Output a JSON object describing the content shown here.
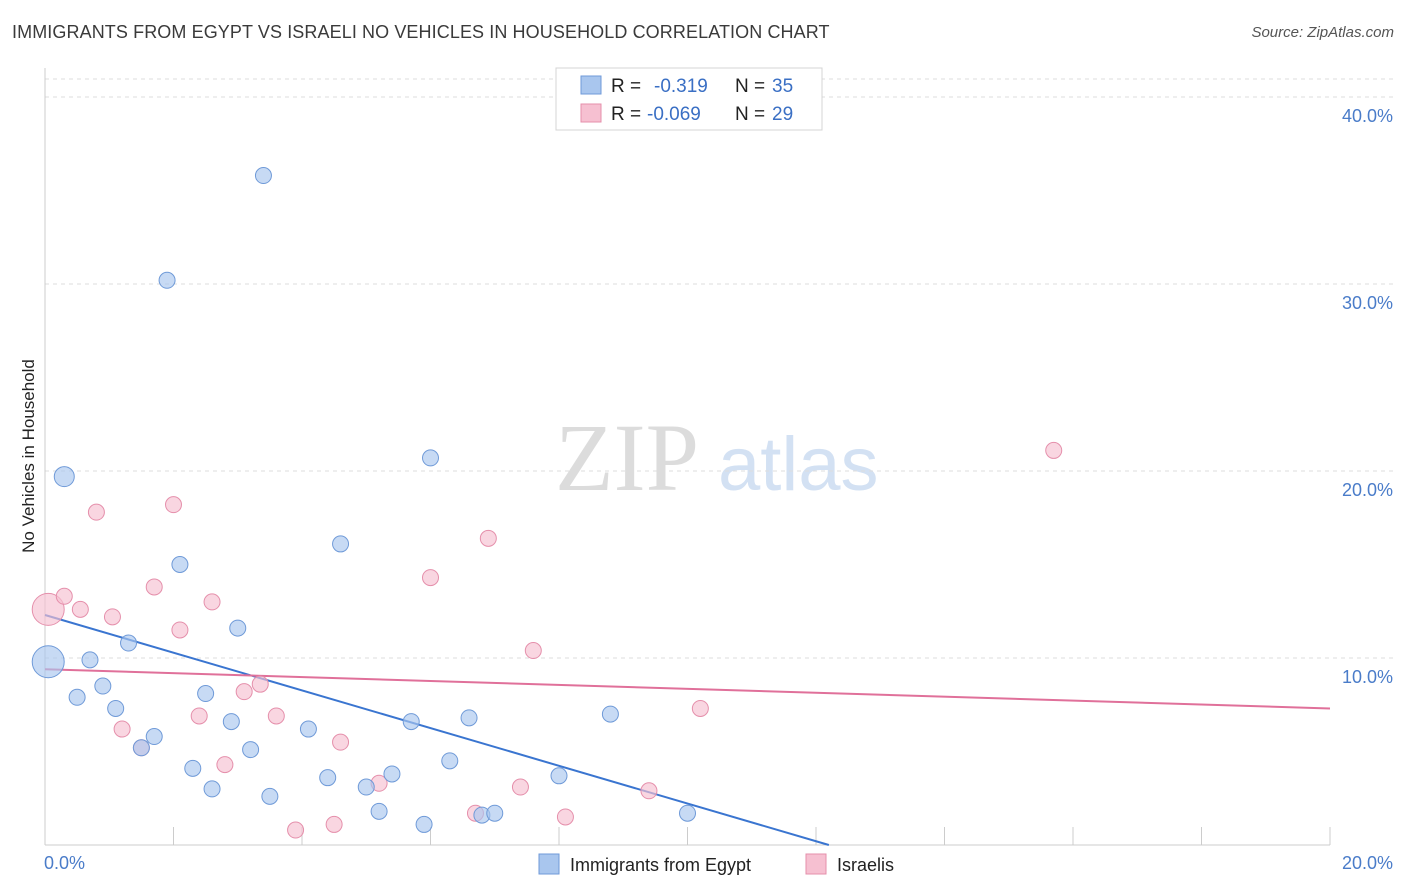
{
  "header": {
    "title": "IMMIGRANTS FROM EGYPT VS ISRAELI NO VEHICLES IN HOUSEHOLD CORRELATION CHART",
    "source": "Source: ZipAtlas.com"
  },
  "watermark": {
    "zip": "ZIP",
    "atlas": "atlas"
  },
  "chart_data": {
    "type": "scatter",
    "title": "IMMIGRANTS FROM EGYPT VS ISRAELI NO VEHICLES IN HOUSEHOLD CORRELATION CHART",
    "xlabel": "",
    "ylabel": "No Vehicles in Household",
    "xlim": [
      0,
      20
    ],
    "ylim": [
      0,
      40
    ],
    "x_tick_labels": [
      "0.0%",
      "20.0%"
    ],
    "y_ticks": [
      10,
      20,
      30,
      40
    ],
    "y_tick_labels": [
      "10.0%",
      "20.0%",
      "30.0%",
      "40.0%"
    ],
    "grid": true,
    "legend_position": "top-center",
    "series": [
      {
        "name": "Immigrants from Egypt",
        "color": "#a9c6ee",
        "stroke": "#6f9ad8",
        "line_color": "#3a75d0",
        "r_label": "R =",
        "r_value": "-0.319",
        "n_label": "N =",
        "n_value": "35",
        "trend": {
          "x": [
            0.0,
            12.2
          ],
          "y": [
            12.3,
            0.0
          ]
        },
        "points": [
          {
            "x": 0.05,
            "y": 9.8,
            "size": 16
          },
          {
            "x": 0.3,
            "y": 19.7,
            "size": 10
          },
          {
            "x": 0.5,
            "y": 7.9,
            "size": 8
          },
          {
            "x": 0.7,
            "y": 9.9,
            "size": 8
          },
          {
            "x": 0.9,
            "y": 8.5,
            "size": 8
          },
          {
            "x": 1.1,
            "y": 7.3,
            "size": 8
          },
          {
            "x": 1.3,
            "y": 10.8,
            "size": 8
          },
          {
            "x": 1.5,
            "y": 5.2,
            "size": 8
          },
          {
            "x": 1.7,
            "y": 5.8,
            "size": 8
          },
          {
            "x": 1.9,
            "y": 30.2,
            "size": 8
          },
          {
            "x": 2.1,
            "y": 15.0,
            "size": 8
          },
          {
            "x": 2.3,
            "y": 4.1,
            "size": 8
          },
          {
            "x": 2.5,
            "y": 8.1,
            "size": 8
          },
          {
            "x": 2.6,
            "y": 3.0,
            "size": 8
          },
          {
            "x": 2.9,
            "y": 6.6,
            "size": 8
          },
          {
            "x": 3.2,
            "y": 5.1,
            "size": 8
          },
          {
            "x": 3.0,
            "y": 11.6,
            "size": 8
          },
          {
            "x": 3.4,
            "y": 35.8,
            "size": 8
          },
          {
            "x": 3.5,
            "y": 2.6,
            "size": 8
          },
          {
            "x": 4.1,
            "y": 6.2,
            "size": 8
          },
          {
            "x": 4.4,
            "y": 3.6,
            "size": 8
          },
          {
            "x": 4.6,
            "y": 16.1,
            "size": 8
          },
          {
            "x": 5.0,
            "y": 3.1,
            "size": 8
          },
          {
            "x": 5.2,
            "y": 1.8,
            "size": 8
          },
          {
            "x": 5.4,
            "y": 3.8,
            "size": 8
          },
          {
            "x": 5.7,
            "y": 6.6,
            "size": 8
          },
          {
            "x": 5.9,
            "y": 1.1,
            "size": 8
          },
          {
            "x": 6.0,
            "y": 20.7,
            "size": 8
          },
          {
            "x": 6.3,
            "y": 4.5,
            "size": 8
          },
          {
            "x": 6.6,
            "y": 6.8,
            "size": 8
          },
          {
            "x": 6.8,
            "y": 1.6,
            "size": 8
          },
          {
            "x": 7.0,
            "y": 1.7,
            "size": 8
          },
          {
            "x": 8.0,
            "y": 3.7,
            "size": 8
          },
          {
            "x": 8.8,
            "y": 7.0,
            "size": 8
          },
          {
            "x": 10.0,
            "y": 1.7,
            "size": 8
          }
        ]
      },
      {
        "name": "Israelis",
        "color": "#f6c0d1",
        "stroke": "#e58fab",
        "line_color": "#e0709a",
        "r_label": "R =",
        "r_value": "-0.069",
        "n_label": "N =",
        "n_value": "29",
        "trend": {
          "x": [
            0.0,
            20.0
          ],
          "y": [
            9.4,
            7.3
          ]
        },
        "points": [
          {
            "x": 0.05,
            "y": 12.6,
            "size": 16
          },
          {
            "x": 0.3,
            "y": 13.3,
            "size": 8
          },
          {
            "x": 0.55,
            "y": 12.6,
            "size": 8
          },
          {
            "x": 0.8,
            "y": 17.8,
            "size": 8
          },
          {
            "x": 1.05,
            "y": 12.2,
            "size": 8
          },
          {
            "x": 1.2,
            "y": 6.2,
            "size": 8
          },
          {
            "x": 1.5,
            "y": 5.2,
            "size": 8
          },
          {
            "x": 1.7,
            "y": 13.8,
            "size": 8
          },
          {
            "x": 2.0,
            "y": 18.2,
            "size": 8
          },
          {
            "x": 2.1,
            "y": 11.5,
            "size": 8
          },
          {
            "x": 2.4,
            "y": 6.9,
            "size": 8
          },
          {
            "x": 2.6,
            "y": 13.0,
            "size": 8
          },
          {
            "x": 2.8,
            "y": 4.3,
            "size": 8
          },
          {
            "x": 3.1,
            "y": 8.2,
            "size": 8
          },
          {
            "x": 3.35,
            "y": 8.6,
            "size": 8
          },
          {
            "x": 3.6,
            "y": 6.9,
            "size": 8
          },
          {
            "x": 3.9,
            "y": 0.8,
            "size": 8
          },
          {
            "x": 4.5,
            "y": 1.1,
            "size": 8
          },
          {
            "x": 4.6,
            "y": 5.5,
            "size": 8
          },
          {
            "x": 5.2,
            "y": 3.3,
            "size": 8
          },
          {
            "x": 6.0,
            "y": 14.3,
            "size": 8
          },
          {
            "x": 6.7,
            "y": 1.7,
            "size": 8
          },
          {
            "x": 6.9,
            "y": 16.4,
            "size": 8
          },
          {
            "x": 7.4,
            "y": 3.1,
            "size": 8
          },
          {
            "x": 7.6,
            "y": 10.4,
            "size": 8
          },
          {
            "x": 8.1,
            "y": 1.5,
            "size": 8
          },
          {
            "x": 9.4,
            "y": 2.9,
            "size": 8
          },
          {
            "x": 10.2,
            "y": 7.3,
            "size": 8
          },
          {
            "x": 15.7,
            "y": 21.1,
            "size": 8
          }
        ]
      }
    ]
  }
}
